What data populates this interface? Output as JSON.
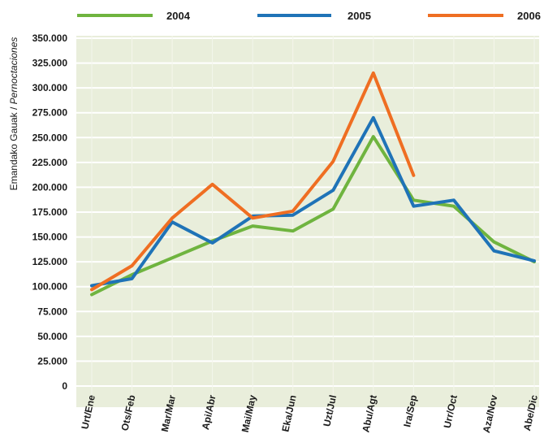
{
  "chart_data": {
    "type": "line",
    "ylabel_main": "Emandako Gauak / ",
    "ylabel_italic": "Pernoctaciones",
    "categories": [
      "Urt/Ene",
      "Ots/Feb",
      "Mar/Mar",
      "Api/Abr",
      "Mai/May",
      "Eka/Jun",
      "Uzt/Jul",
      "Abu/Agt",
      "Ira/Sep",
      "Urr/Oct",
      "Aza/Nov",
      "Abe/Dic"
    ],
    "yticks": [
      "350.000",
      "325.000",
      "300.000",
      "275.000",
      "250.000",
      "225.000",
      "200.000",
      "175.000",
      "150.000",
      "125.000",
      "100.000",
      "75.000",
      "50.000",
      "25.000",
      "0"
    ],
    "ylim": [
      0,
      350000
    ],
    "grid": true,
    "legend_position": "top",
    "series": [
      {
        "name": "2004",
        "color": "#6fb43f",
        "values": [
          92000,
          112000,
          129000,
          146000,
          161000,
          156000,
          178000,
          251000,
          187000,
          181000,
          145000,
          125000
        ]
      },
      {
        "name": "2005",
        "color": "#1f73b7",
        "values": [
          101000,
          108000,
          165000,
          144000,
          171000,
          172000,
          197000,
          270000,
          181000,
          187000,
          136000,
          126000
        ]
      },
      {
        "name": "2006",
        "color": "#ef6e22",
        "values": [
          97000,
          121000,
          169000,
          203000,
          169000,
          176000,
          226000,
          315000,
          212000,
          null,
          null,
          null
        ]
      }
    ]
  }
}
